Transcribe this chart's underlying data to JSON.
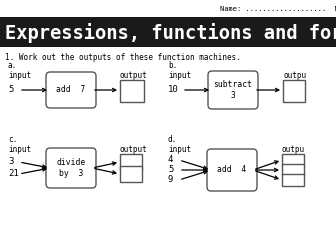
{
  "title": "Expressions, functions and formulae",
  "title_bg": "#1a1a1a",
  "title_color": "#ffffff",
  "header_text": "Name: ...................  Maths group: ....",
  "question_text": "1. Work out the outputs of these function machines.",
  "bg_color": "#f0f0f0",
  "sections": [
    {
      "label": "a.",
      "input_label": "input",
      "input_val": "5",
      "op": "add  7",
      "output_label": "output",
      "multi": false
    },
    {
      "label": "b.",
      "input_label": "input",
      "input_val": "10",
      "op": "subtract\n3",
      "output_label": "outpu",
      "multi": false
    },
    {
      "label": "c.",
      "input_label": "input",
      "input_vals": [
        "3",
        "21"
      ],
      "op": "divide\nby  3",
      "output_label": "output",
      "multi": true
    },
    {
      "label": "d.",
      "input_label": "input",
      "input_vals": [
        "4",
        "5",
        "9"
      ],
      "op": "add  4",
      "output_label": "outpu",
      "multi": true
    }
  ]
}
